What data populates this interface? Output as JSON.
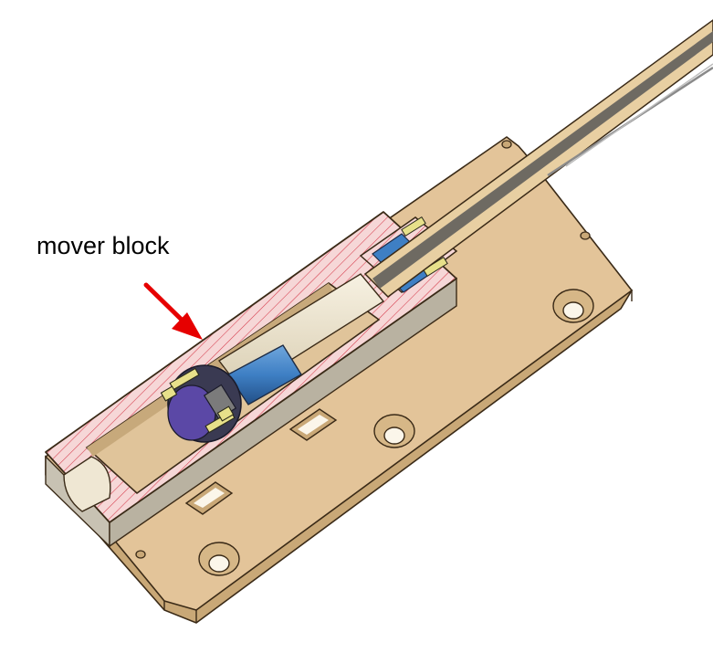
{
  "annotation": {
    "label": "mover block",
    "arrow_color": "#e60000"
  },
  "colors": {
    "base_plate": "#e3c499",
    "base_plate_side": "#c9a877",
    "section_hatch_fill": "#f6d7d7",
    "section_hatch_line": "#d63a4a",
    "bore_light": "#efe7d3",
    "magnet_blue": "#3e7fc4",
    "coil_purple": "#5b48a6",
    "spring_yellow": "#e7e08a",
    "rod_core": "#6e6a62",
    "rod_sheath": "#e8cfa2"
  }
}
